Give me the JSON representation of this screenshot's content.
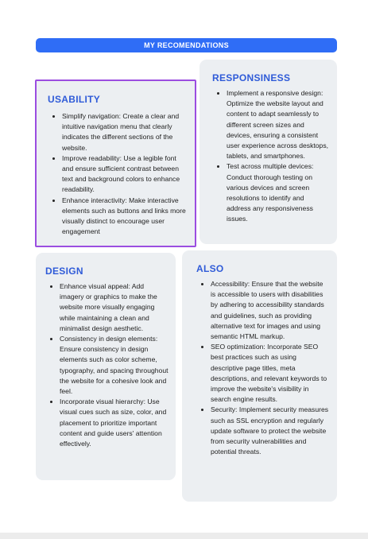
{
  "banner": {
    "title": "MY RECOMENDATIONS"
  },
  "colors": {
    "accent": "#2f6df6",
    "heading": "#2f5bd8",
    "highlight_border": "#9b4de0",
    "card_bg": "#eceff2"
  },
  "usability": {
    "title": "USABILITY",
    "items": [
      "Simplify navigation: Create a clear and intuitive navigation menu that clearly indicates the different sections of the website.",
      "Improve readability: Use a legible font and ensure sufficient contrast between text and background colors to enhance readability.",
      "Enhance interactivity: Make interactive elements such as buttons and links more visually distinct to encourage user engagement"
    ]
  },
  "responsiveness": {
    "title": "RESPONSINESS",
    "items": [
      "Implement a responsive design: Optimize the website layout and content to adapt seamlessly to different screen sizes and devices, ensuring a consistent user experience across desktops, tablets, and smartphones.",
      "Test across multiple devices: Conduct thorough testing on various devices and screen resolutions to identify and address any responsiveness issues."
    ]
  },
  "design": {
    "title": "DESIGN",
    "items": [
      "Enhance visual appeal: Add imagery or graphics to make the website more visually engaging while maintaining a clean and minimalist design aesthetic.",
      "Consistency in design elements: Ensure consistency in design elements such as color scheme, typography, and spacing throughout the website for a cohesive look and feel.",
      "Incorporate visual hierarchy: Use visual cues such as size, color, and placement to prioritize important content and guide users' attention effectively."
    ]
  },
  "also": {
    "title": "ALSO",
    "items": [
      "Accessibility: Ensure that the website is accessible to users with disabilities by adhering to accessibility standards and guidelines, such as providing alternative text for images and using semantic HTML markup.",
      "SEO optimization: Incorporate SEO best practices such as using descriptive page titles, meta descriptions, and relevant keywords to improve the website's visibility in search engine results.",
      "Security: Implement security measures such as SSL encryption and regularly update software to protect the website from security vulnerabilities and potential threats."
    ]
  }
}
